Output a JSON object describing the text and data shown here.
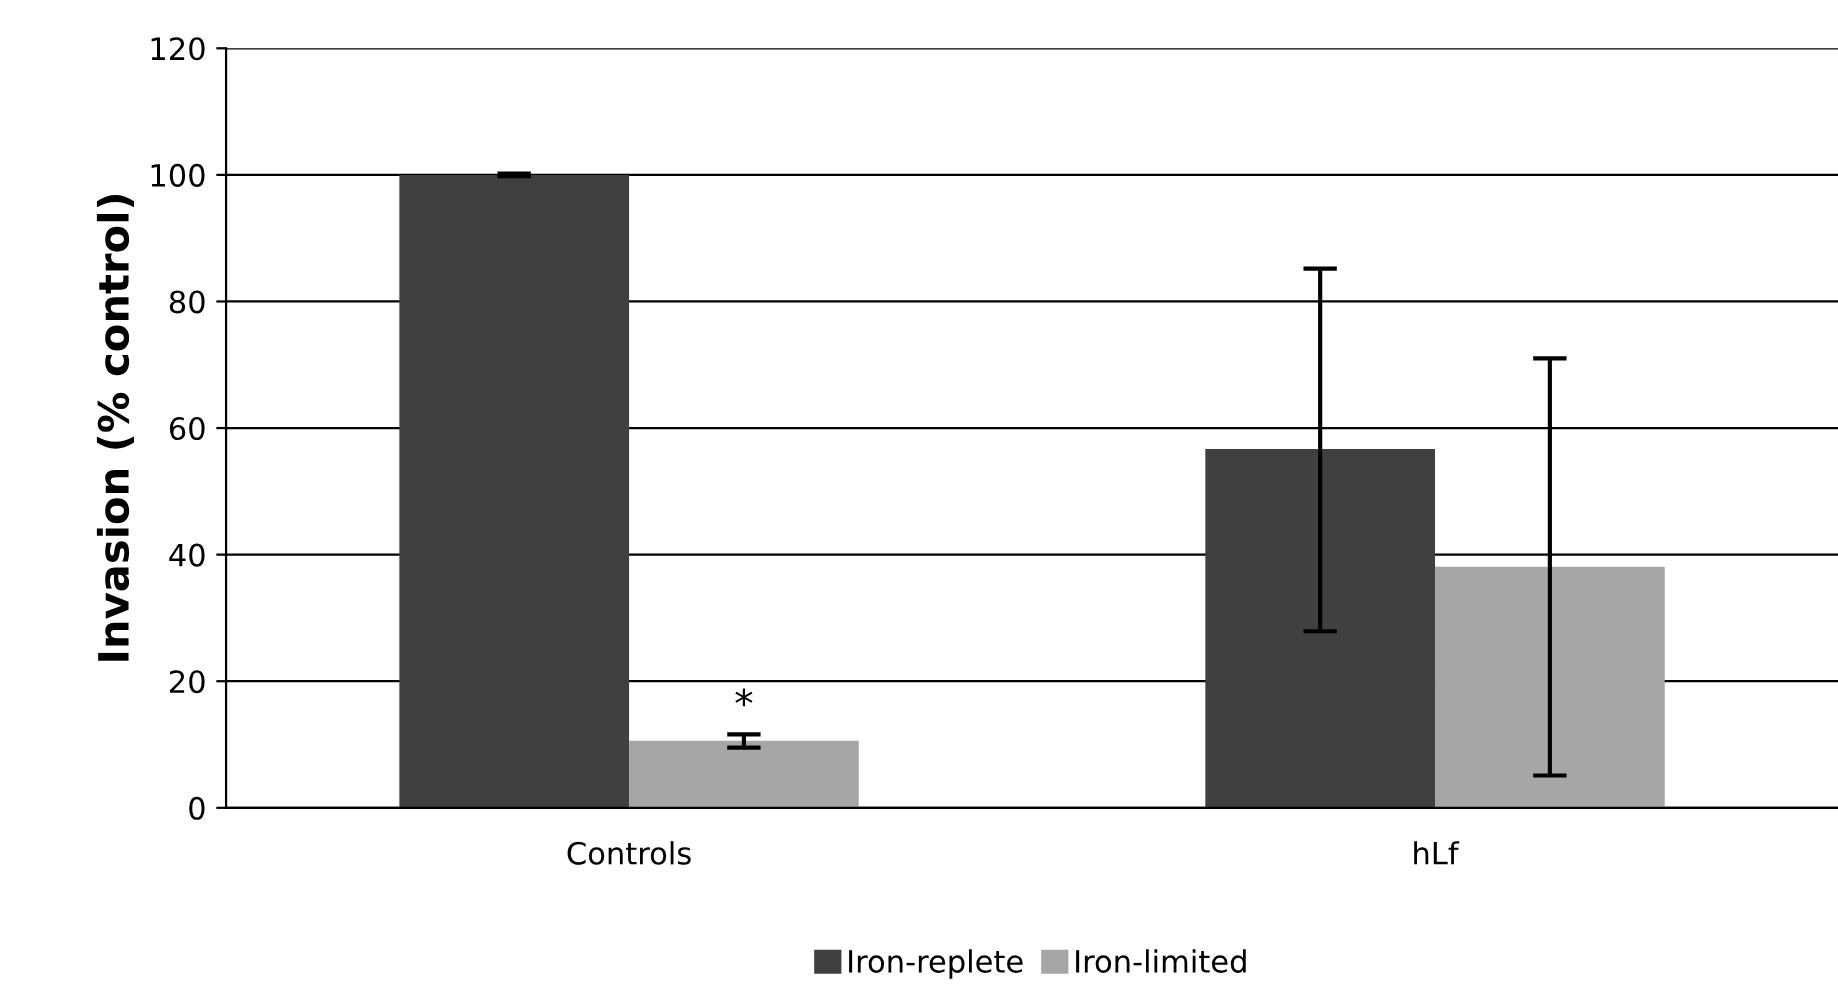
{
  "chart_data": {
    "type": "bar",
    "ylabel": "Invasion (% control)",
    "categories": [
      "Controls",
      "hLf"
    ],
    "series": [
      {
        "name": "Iron-replete",
        "color": "#404040",
        "values": [
          100,
          56.7
        ],
        "errors": [
          [
            99.8,
            100.2
          ],
          [
            27.9,
            85.2
          ]
        ]
      },
      {
        "name": "Iron-limited",
        "color": "#a6a6a6",
        "values": [
          10.6,
          38.1
        ],
        "errors": [
          [
            9.5,
            11.6
          ],
          [
            5.1,
            71
          ]
        ]
      }
    ],
    "annotations": [
      {
        "text": "*",
        "x": "Controls",
        "y": 16
      }
    ],
    "ylim": [
      0,
      120
    ],
    "yticks": [
      0,
      20,
      40,
      60,
      80,
      100,
      120
    ],
    "grid": "y",
    "legend": "bottom"
  }
}
